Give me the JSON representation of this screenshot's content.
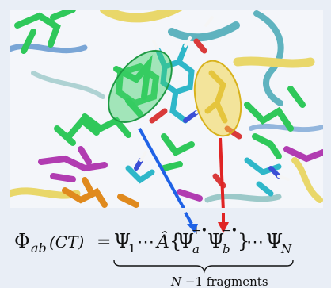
{
  "scene": {
    "palette": {
      "background": "#f4f6fa",
      "ribbon_yellow": "#e9d76a",
      "ribbon_teal": "#5fb3bf",
      "ribbon_blue": "#7aa6d6",
      "green_molecule": "#2fc85a",
      "magenta_molecule": "#b13cb1",
      "orange_molecule": "#e08a1e",
      "cyan_molecule": "#2fb7c9",
      "oxygen_red": "#d93a3a",
      "nitrogen_blue": "#3b4fd6",
      "hydrogen_white": "#f5f5f5",
      "green_ellipse": "#3fd16a",
      "yellow_ellipse": "#f2d23c",
      "blue_arrow": "#1f62e6",
      "red_arrow": "#e02424"
    }
  },
  "equation": {
    "lhs_symbol": "Φ",
    "lhs_subscript": "ab",
    "lhs_argument": "(CT)",
    "equals": "=",
    "psi_first": "Ψ",
    "psi_first_subscript": "1",
    "dots_left": "⋯",
    "operator": "Â",
    "open_brace": "{",
    "psi_a": "Ψ",
    "psi_a_subscript": "a",
    "psi_a_superscript": "+•",
    "psi_b": "Ψ",
    "psi_b_subscript": "b",
    "psi_b_superscript": "−•",
    "close_brace": "}",
    "dots_right": "⋯",
    "psi_last": "Ψ",
    "psi_last_subscript": "N",
    "underbrace_label_n": "N",
    "underbrace_label_rest": " −1 fragments"
  }
}
